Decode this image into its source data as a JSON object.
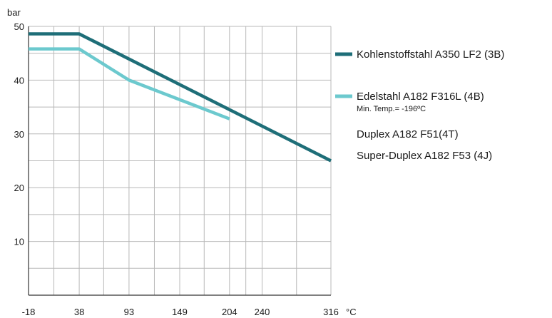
{
  "chart_data": {
    "type": "line",
    "ylabel": "bar",
    "xunit": "°C",
    "x_ticks": [
      -18,
      38,
      93,
      149,
      204,
      240,
      316
    ],
    "y_ticks": [
      10,
      20,
      30,
      40,
      50
    ],
    "xlim": [
      -18,
      316
    ],
    "ylim": [
      0,
      50
    ],
    "grid": true,
    "legend_position": "right",
    "series": [
      {
        "name": "Kohlenstoffstahl A350 LF2 (3B)",
        "color": "#1e6e78",
        "x": [
          -18,
          38,
          316
        ],
        "y": [
          48.6,
          48.6,
          25.0
        ]
      },
      {
        "name": "Edelstahl A182 F316L (4B)",
        "note": "Min. Temp.= -196ºC",
        "color": "#6cc9ce",
        "x": [
          -18,
          38,
          93,
          204
        ],
        "y": [
          45.8,
          45.8,
          40.0,
          32.8
        ]
      }
    ],
    "legend_extra": [
      "Duplex A182 F51(4T)",
      "Super-Duplex A182 F53 (4J)"
    ]
  }
}
